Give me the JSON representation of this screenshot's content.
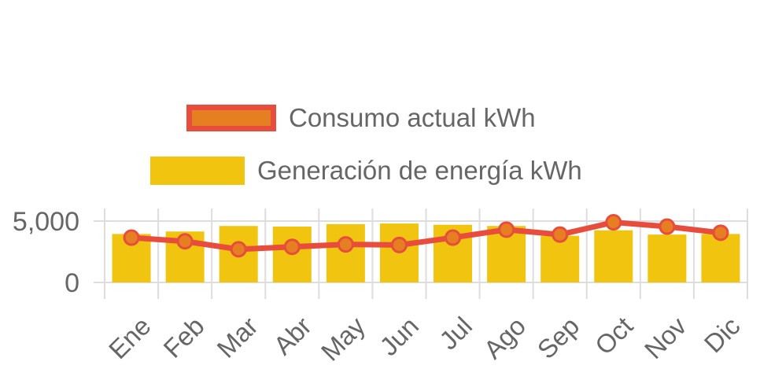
{
  "chart_data": {
    "type": "bar",
    "categories": [
      "Ene",
      "Feb",
      "Mar",
      "Abr",
      "May",
      "Jun",
      "Jul",
      "Ago",
      "Sep",
      "Oct",
      "Nov",
      "Dic"
    ],
    "series": [
      {
        "name": "Consumo actual kWh",
        "type": "line",
        "values": [
          3650,
          3350,
          2700,
          2900,
          3100,
          3050,
          3650,
          4300,
          3900,
          4900,
          4550,
          4050
        ],
        "color": "#e74c3c",
        "fill_color": "#e67e22"
      },
      {
        "name": "Generación de energía kWh",
        "type": "bar",
        "values": [
          3950,
          4150,
          4600,
          4550,
          4750,
          4800,
          4700,
          4600,
          3800,
          4250,
          3900,
          3950
        ],
        "color": "#f1c40f"
      }
    ],
    "y_ticks": [
      "0",
      "5,000"
    ],
    "ylim": [
      0,
      5000
    ],
    "grid": true,
    "legend_position": "top-center"
  }
}
